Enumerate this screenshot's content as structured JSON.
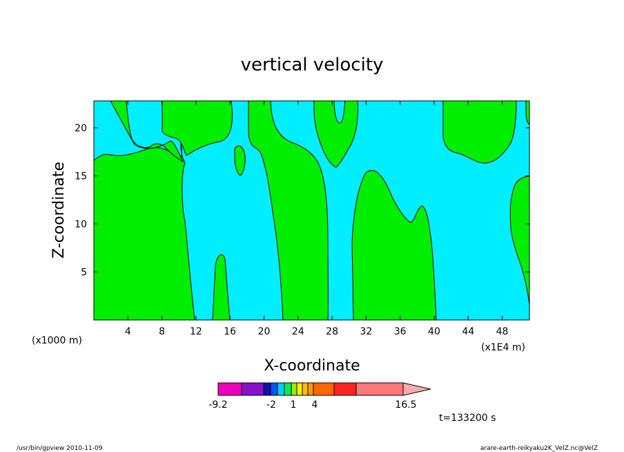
{
  "chart_data": {
    "type": "heatmap",
    "title": "vertical velocity",
    "xlabel": "X-coordinate",
    "ylabel": "Z-coordinate",
    "x_unit_label": "(x1000 m)",
    "x_unit_label_right": "(x1E4 m)",
    "xlim": [
      0,
      51.2
    ],
    "ylim": [
      0,
      22.8
    ],
    "x_ticks": [
      "4",
      "8",
      "12",
      "16",
      "20",
      "24",
      "28",
      "32",
      "36",
      "40",
      "44",
      "48"
    ],
    "y_ticks": [
      "5",
      "10",
      "15",
      "20"
    ],
    "x_tick_values": [
      4,
      8,
      12,
      16,
      20,
      24,
      28,
      32,
      36,
      40,
      44,
      48
    ],
    "y_tick_values": [
      5,
      10,
      15,
      20
    ],
    "contour_colors": {
      "background": "#00eeff",
      "positive": "#00ee00",
      "line": "#000000"
    },
    "colorbar": {
      "min_label": "-9.2",
      "max_label": "16.5",
      "tick_labels": [
        "-9.2",
        "-2",
        "1",
        "4",
        "16.5"
      ],
      "colors": [
        "#ee00bb",
        "#8811cc",
        "#1111aa",
        "#0055ff",
        "#00ccff",
        "#00ee55",
        "#99ee00",
        "#ffee00",
        "#ffbb00",
        "#ff9900",
        "#ff6600",
        "#ff2222",
        "#ff7777",
        "#ffaaaa"
      ]
    },
    "time_label": "t=133200 s",
    "grid": false
  },
  "footer": {
    "left": "/usr/bin/gpview   2010-11-09",
    "right": "arare-earth-reikyaku2K_VelZ.nc@VelZ"
  }
}
